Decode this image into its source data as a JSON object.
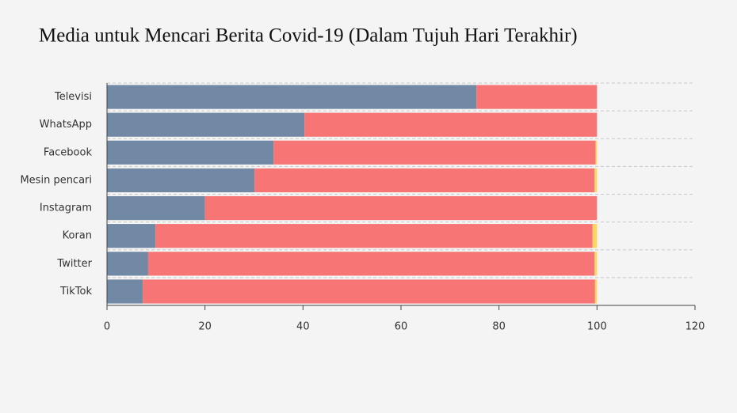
{
  "chart_data": {
    "type": "stacked-barh",
    "title": "Media untuk Mencari Berita Covid-19 (Dalam Tujuh Hari Terakhir)",
    "categories": [
      "Televisi",
      "WhatsApp",
      "Facebook",
      "Mesin pencari",
      "Instagram",
      "Koran",
      "Twitter",
      "TikTok"
    ],
    "series": [
      {
        "color": "#7189a4",
        "values": [
          75.4,
          40.3,
          34,
          30.1,
          20,
          9.9,
          8.4,
          7.3
        ]
      },
      {
        "color": "#f77574",
        "values": [
          24.6,
          59.7,
          65.7,
          69.4,
          80,
          89.2,
          91.1,
          92.3
        ]
      },
      {
        "color": "#fdd55f",
        "values": [
          0,
          0,
          0.3,
          0.5,
          0,
          0.9,
          0.5,
          0.4
        ]
      }
    ],
    "xlim": [
      0,
      120
    ],
    "xticks": [
      0,
      20,
      40,
      60,
      80,
      100,
      120
    ],
    "grid": true
  }
}
